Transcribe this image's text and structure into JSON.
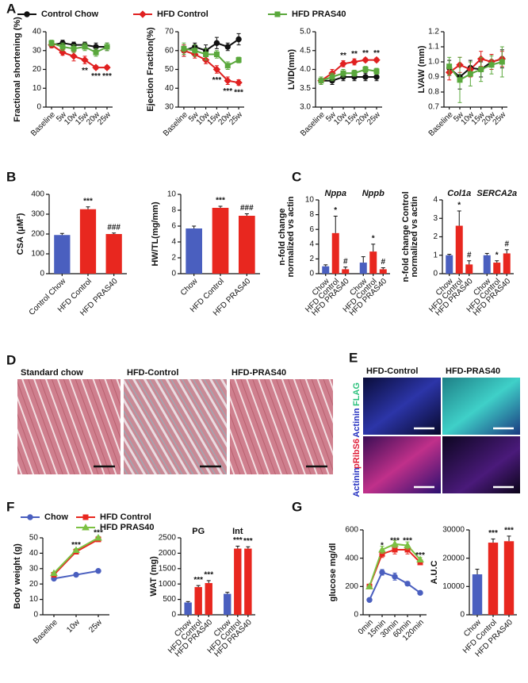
{
  "chart_data": [
    {
      "panel": "A",
      "type": "line",
      "ylabel": "Fractional shortening (%)",
      "legend": "top",
      "categories": [
        "Baseline",
        "5w",
        "10w",
        "15w",
        "20w",
        "25w"
      ],
      "ylim": [
        0,
        40
      ],
      "yticks": [
        0,
        10,
        20,
        30,
        40
      ],
      "series": [
        {
          "name": "Control Chow",
          "color": "#111111",
          "marker": "circle",
          "values": [
            33,
            34,
            33,
            33,
            32,
            32
          ],
          "errors": [
            1.5,
            1.5,
            1.5,
            1.5,
            2,
            2
          ]
        },
        {
          "name": "HFD Control",
          "color": "#e02020",
          "marker": "diamond",
          "values": [
            33,
            29,
            27,
            25,
            21,
            21
          ],
          "errors": [
            1.5,
            1.5,
            2.5,
            2,
            1,
            1
          ],
          "annotations": [
            null,
            null,
            null,
            "**",
            "***",
            "***"
          ]
        },
        {
          "name": "HFD PRAS40",
          "color": "#5aa83c",
          "marker": "square",
          "values": [
            34,
            32,
            31,
            32,
            29,
            32
          ],
          "errors": [
            1.5,
            2,
            2,
            2,
            2,
            2
          ]
        }
      ]
    },
    {
      "type": "line",
      "ylabel": "Ejection Fraction(%)",
      "categories": [
        "Baseline",
        "5w",
        "10w",
        "15w",
        "20w",
        "25w"
      ],
      "ylim": [
        30,
        70
      ],
      "yticks": [
        30,
        40,
        50,
        60,
        70
      ],
      "series": [
        {
          "color": "#111111",
          "marker": "circle",
          "values": [
            60,
            62,
            60,
            64,
            62,
            66
          ],
          "errors": [
            3,
            2,
            3,
            3,
            2,
            3
          ]
        },
        {
          "color": "#e02020",
          "marker": "diamond",
          "values": [
            60,
            58,
            55,
            50,
            44,
            43
          ],
          "errors": [
            3,
            2,
            2,
            2,
            2,
            1.5
          ],
          "annotations": [
            null,
            null,
            null,
            "***",
            "***",
            "***"
          ]
        },
        {
          "color": "#5aa83c",
          "marker": "square",
          "values": [
            61,
            60,
            58,
            58,
            52,
            55
          ],
          "errors": [
            3,
            3,
            3,
            2,
            2,
            1.5
          ]
        }
      ]
    },
    {
      "type": "line",
      "ylabel": "LVID(mm)",
      "categories": [
        "Baseline",
        "5w",
        "10w",
        "15w",
        "20w",
        "25w"
      ],
      "ylim": [
        3.0,
        5.0
      ],
      "yticks": [
        {
          "value": 3,
          "label": "3.0"
        },
        3.5,
        {
          "value": 4,
          "label": "4.0"
        },
        4.5,
        {
          "value": 5,
          "label": "5.0"
        }
      ],
      "series": [
        {
          "color": "#111111",
          "marker": "circle",
          "values": [
            3.7,
            3.7,
            3.8,
            3.8,
            3.8,
            3.8
          ],
          "errors": [
            0.1,
            0.1,
            0.1,
            0.1,
            0.1,
            0.1
          ]
        },
        {
          "color": "#e02020",
          "marker": "diamond",
          "values": [
            3.7,
            3.9,
            4.15,
            4.2,
            4.25,
            4.25
          ],
          "errors": [
            0.1,
            0.1,
            0.08,
            0.08,
            0.05,
            0.05
          ],
          "annotations": [
            null,
            null,
            "**",
            "**",
            "**",
            "**"
          ]
        },
        {
          "color": "#5aa83c",
          "marker": "square",
          "values": [
            3.7,
            3.8,
            3.9,
            3.9,
            4.0,
            3.95
          ],
          "errors": [
            0.1,
            0.1,
            0.1,
            0.08,
            0.08,
            0.08
          ]
        }
      ]
    },
    {
      "type": "line",
      "ylabel": "LVAW (mm)",
      "categories": [
        "Baseline",
        "5w",
        "10w",
        "15w",
        "20w",
        "25w"
      ],
      "ylim": [
        0.7,
        1.2
      ],
      "yticks": [
        0.7,
        0.8,
        0.9,
        {
          "value": 1,
          "label": "1.0"
        },
        1.1,
        1.2
      ],
      "series": [
        {
          "color": "#111111",
          "marker": "circle",
          "values": [
            0.96,
            0.9,
            0.96,
            0.95,
            1.0,
            1.02
          ],
          "errors": [
            0.05,
            0.08,
            0.05,
            0.05,
            0.05,
            0.06
          ]
        },
        {
          "color": "#e02020",
          "marker": "diamond",
          "values": [
            0.93,
            0.98,
            0.95,
            1.02,
            1.0,
            1.02
          ],
          "errors": [
            0.05,
            0.05,
            0.05,
            0.05,
            0.05,
            0.05
          ]
        },
        {
          "color": "#5aa83c",
          "marker": "square",
          "values": [
            0.97,
            0.88,
            0.92,
            0.95,
            0.98,
            1.0
          ],
          "errors": [
            0.06,
            0.15,
            0.08,
            0.08,
            0.06,
            0.1
          ]
        }
      ]
    },
    {
      "panel": "B",
      "type": "bar",
      "ylabel": "CSA (μM²)",
      "categories": [
        "Control Chow",
        "HFD Control",
        "HFD PRAS40"
      ],
      "values": [
        195,
        325,
        200
      ],
      "errors": [
        8,
        12,
        5
      ],
      "annotations": [
        null,
        "***",
        "###"
      ],
      "colors": [
        "#4a5fbf",
        "#e8271f",
        "#e8271f"
      ],
      "ylim": [
        0,
        400
      ],
      "yticks": [
        0,
        100,
        200,
        300,
        400
      ]
    },
    {
      "type": "bar",
      "ylabel": "HW/TL(mg/mm)",
      "categories": [
        "Chow",
        "HFD Control",
        "HFD PRAS40"
      ],
      "values": [
        5.7,
        8.3,
        7.3
      ],
      "errors": [
        0.3,
        0.2,
        0.25
      ],
      "annotations": [
        null,
        "***",
        "###"
      ],
      "colors": [
        "#4a5fbf",
        "#e8271f",
        "#e8271f"
      ],
      "ylim": [
        0,
        10
      ],
      "yticks": [
        0,
        2,
        4,
        6,
        8,
        10
      ]
    },
    {
      "panel": "C",
      "type": "grouped_bar",
      "ylabel": [
        "n-fold change",
        "normalized vs actin"
      ],
      "group_style": "italic",
      "colors": [
        "#4a5fbf",
        "#e8271f",
        "#e8271f"
      ],
      "ylim": [
        0,
        10
      ],
      "yticks": [
        0,
        2,
        4,
        6,
        8,
        10
      ],
      "groups": [
        {
          "name": "Nppa",
          "categories": [
            "Chow",
            "HFD Control",
            "HFD PRAS40"
          ],
          "values": [
            1,
            5.5,
            0.6
          ],
          "errors": [
            0.2,
            2.3,
            0.3
          ],
          "annotations": [
            null,
            "*",
            "#"
          ]
        },
        {
          "name": "Nppb",
          "categories": [
            "Chow",
            "HFD Control",
            "HFD PRAS40"
          ],
          "values": [
            1.5,
            3,
            0.6
          ],
          "errors": [
            0.8,
            1,
            0.2
          ],
          "annotations": [
            null,
            "*",
            "#"
          ]
        }
      ]
    },
    {
      "type": "grouped_bar",
      "ylabel": [
        "n-fold change Control",
        "normalized vs actin"
      ],
      "group_style": "italic",
      "colors": [
        "#4a5fbf",
        "#e8271f",
        "#e8271f"
      ],
      "ylim": [
        0,
        4
      ],
      "yticks": [
        0,
        1,
        2,
        3,
        4
      ],
      "groups": [
        {
          "name": "Col1a",
          "categories": [
            "Chow",
            "HFD Control",
            "HFD PRAS40"
          ],
          "values": [
            1,
            2.6,
            0.5
          ],
          "errors": [
            0.05,
            0.8,
            0.2
          ],
          "annotations": [
            null,
            "*",
            "#"
          ]
        },
        {
          "name": "SERCA2a",
          "categories": [
            "Chow",
            "HFD Control",
            "HFD PRAS40"
          ],
          "values": [
            1,
            0.6,
            1.1
          ],
          "errors": [
            0.1,
            0.1,
            0.2
          ],
          "annotations": [
            null,
            "*",
            "#"
          ]
        }
      ]
    },
    {
      "panel": "F",
      "type": "line",
      "ylabel": "Body weight (g)",
      "legend": "top",
      "categories": [
        "Baseline",
        "10w",
        "25w"
      ],
      "ylim": [
        0,
        50
      ],
      "yticks": [
        0,
        10,
        20,
        30,
        40,
        50
      ],
      "series": [
        {
          "name": "Chow",
          "color": "#4a5fbf",
          "marker": "circle",
          "values": [
            23.5,
            26,
            28.5
          ],
          "errors": [
            0.5,
            0.5,
            0.6
          ]
        },
        {
          "name": "HFD Control",
          "color": "#e8271f",
          "marker": "square",
          "values": [
            26,
            41,
            49
          ],
          "errors": [
            0.6,
            1,
            1
          ],
          "annotations": [
            null,
            "***",
            "***"
          ]
        },
        {
          "name": "HFD PRAS40",
          "color": "#7cc142",
          "marker": "triangle",
          "values": [
            27,
            42,
            50
          ],
          "errors": [
            0.6,
            1,
            1
          ]
        }
      ]
    },
    {
      "type": "grouped_bar",
      "ylabel": "WAT (mg)",
      "colors": [
        "#4a5fbf",
        "#e8271f",
        "#e8271f"
      ],
      "ylim": [
        0,
        2500
      ],
      "yticks": [
        0,
        500,
        1000,
        1500,
        2000,
        2500
      ],
      "groups": [
        {
          "name": "PG",
          "categories": [
            "Chow",
            "HFD Control",
            "HFD PRAS40"
          ],
          "values": [
            400,
            900,
            1030
          ],
          "errors": [
            30,
            50,
            80
          ],
          "annotations": [
            null,
            "***",
            "***"
          ]
        },
        {
          "name": "Int",
          "categories": [
            "Chow",
            "HFD Control",
            "HFD PRAS40"
          ],
          "values": [
            680,
            2150,
            2150
          ],
          "errors": [
            50,
            80,
            60
          ],
          "annotations": [
            null,
            "***",
            "***"
          ]
        }
      ]
    },
    {
      "panel": "G",
      "type": "line",
      "ylabel": "glucose mg/dl",
      "categories": [
        "0min",
        "15min",
        "30min",
        "60min",
        "120min"
      ],
      "ylim": [
        0,
        600
      ],
      "yticks": [
        0,
        200,
        400,
        600
      ],
      "series": [
        {
          "color": "#4a5fbf",
          "marker": "circle",
          "values": [
            105,
            300,
            270,
            220,
            155
          ],
          "errors": [
            5,
            20,
            25,
            15,
            8
          ]
        },
        {
          "color": "#e8271f",
          "marker": "square",
          "values": [
            200,
            430,
            460,
            460,
            370
          ],
          "errors": [
            8,
            25,
            30,
            30,
            15
          ],
          "annotations": [
            null,
            "*",
            "***",
            "***",
            "***"
          ]
        },
        {
          "color": "#7cc142",
          "marker": "triangle",
          "values": [
            200,
            460,
            500,
            490,
            390
          ],
          "errors": [
            8,
            25,
            25,
            25,
            15
          ]
        }
      ]
    },
    {
      "type": "bar",
      "ylabel": "A.U.C",
      "categories": [
        "Chow",
        "HFD Control",
        "HFD PRAS40"
      ],
      "values": [
        14300,
        25500,
        26000
      ],
      "errors": [
        1800,
        1300,
        1800
      ],
      "annotations": [
        null,
        "***",
        "***"
      ],
      "colors": [
        "#4a5fbf",
        "#e8271f",
        "#e8271f"
      ],
      "ylim": [
        0,
        30000
      ],
      "yticks": [
        0,
        10000,
        20000,
        30000
      ]
    }
  ],
  "panel_D": {
    "label": "D",
    "images": [
      "Standard chow",
      "HFD-Control",
      "HFD-PRAS40"
    ]
  },
  "panel_E": {
    "label": "E",
    "columns": [
      "HFD-Control",
      "HFD-PRAS40"
    ],
    "rows": [
      {
        "marker": "FLAG",
        "stain": "Actinin"
      },
      {
        "marker": "pRibS6",
        "stain": "Actinin"
      }
    ]
  }
}
